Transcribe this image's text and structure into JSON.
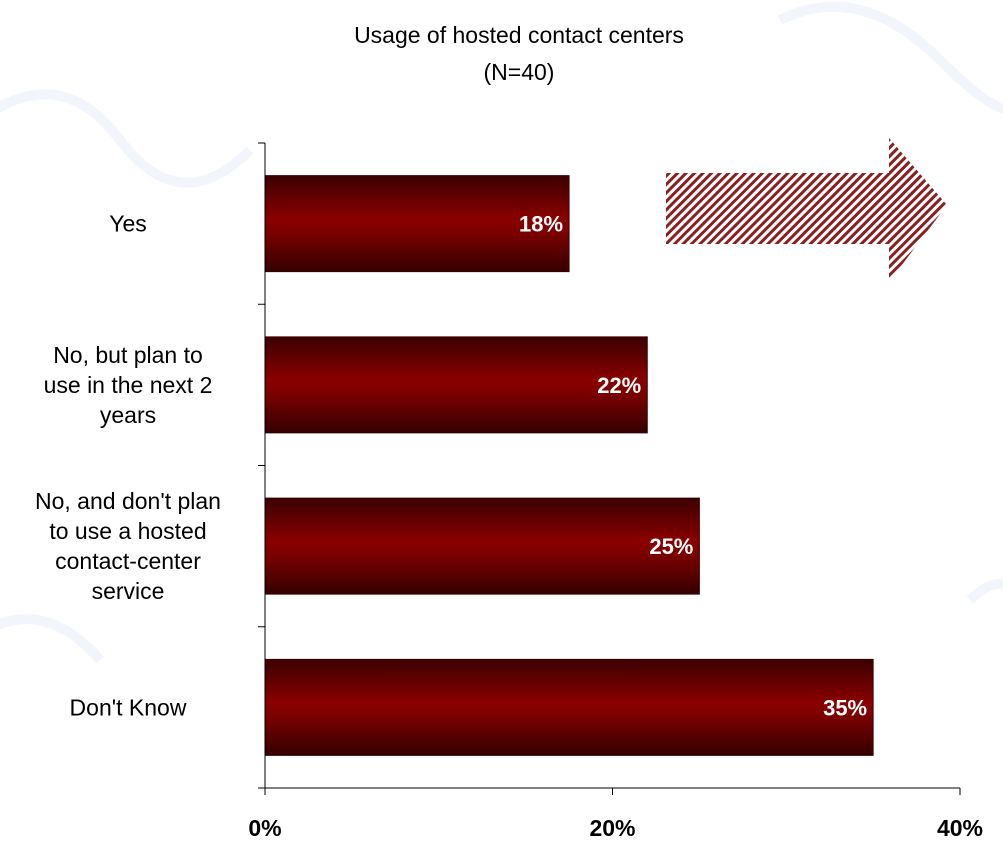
{
  "chart_data": {
    "type": "bar",
    "orientation": "horizontal",
    "title": "Usage of hosted contact centers",
    "subtitle": "(N=40)",
    "categories": [
      [
        "Yes"
      ],
      [
        "No, but plan to",
        "use in the next 2",
        "years"
      ],
      [
        "No, and don't plan",
        "to use a hosted",
        "contact-center",
        "service"
      ],
      [
        "Don't Know"
      ]
    ],
    "values": [
      17.5,
      22,
      25,
      35
    ],
    "data_labels": [
      "18%",
      "22%",
      "25%",
      "35%"
    ],
    "xlim": [
      0,
      40
    ],
    "x_ticks": [
      0,
      20,
      40
    ],
    "x_tick_labels": [
      "0%",
      "20%",
      "40%"
    ],
    "xlabel": "",
    "ylabel": "",
    "grid": false,
    "legend": "none"
  },
  "colors": {
    "bar_edge": "#3a0000",
    "bar_dark": "#3c0000",
    "bar_mid": "#8a0000",
    "arrow_stripe": "#8a1f1f",
    "axis": "#000000",
    "background_decor": "#e9eef8"
  },
  "decor": {
    "arrow_icon": "right-arrow-hatched-icon"
  }
}
